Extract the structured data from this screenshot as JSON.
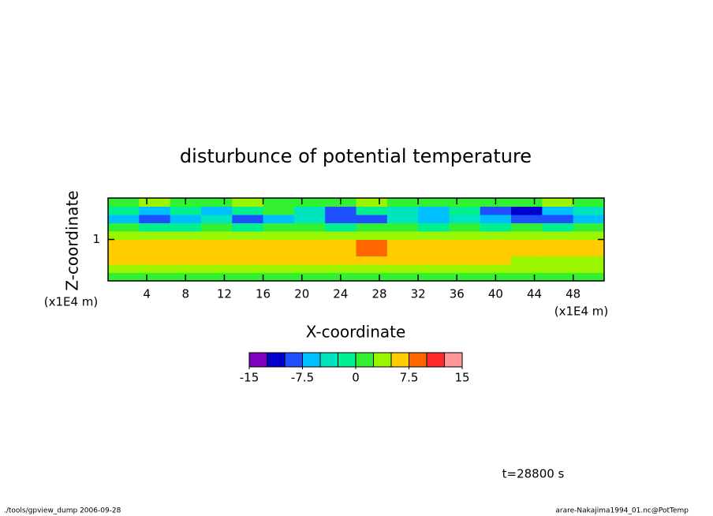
{
  "chart_data": {
    "type": "contour",
    "title": "disturbunce of potential temperature",
    "x_label": "X-coordinate",
    "y_label": "Z-coordinate",
    "x_unit": "(x1E4 m)",
    "y_unit": "(x1E4 m)",
    "time_label": "t=28800 s",
    "footer_left": "./tools/gpview_dump  2006-09-28",
    "footer_right": "arare-Nakajima1994_01.nc@PotTemp",
    "xlim": [
      0,
      51.2
    ],
    "ylim": [
      0,
      2
    ],
    "xticks": [
      4,
      8,
      12,
      16,
      20,
      24,
      28,
      32,
      36,
      40,
      44,
      48
    ],
    "yticks": [
      1
    ],
    "x": [
      1.6,
      4.8,
      8,
      11.2,
      14.4,
      17.6,
      20.8,
      24,
      27.2,
      30.4,
      33.6,
      36.8,
      40,
      43.2,
      46.4,
      49.6
    ],
    "y": [
      0.1,
      0.3,
      0.5,
      0.7,
      0.9,
      1.1,
      1.3,
      1.5,
      1.7,
      1.9
    ],
    "z": [
      [
        1,
        1,
        1,
        1,
        1,
        1,
        1,
        1,
        1.5,
        1,
        1,
        1,
        1,
        1,
        1,
        1
      ],
      [
        4,
        4,
        3.5,
        4,
        4,
        4,
        4,
        4,
        3,
        4,
        4,
        4,
        4,
        3.5,
        3.5,
        4
      ],
      [
        6,
        6,
        6,
        6,
        6,
        6,
        6,
        6,
        6.5,
        6,
        6,
        6,
        6,
        4,
        4,
        4
      ],
      [
        6,
        6,
        6,
        6,
        6,
        6,
        6,
        6,
        8.5,
        6,
        6,
        6,
        6,
        6,
        6,
        6
      ],
      [
        6,
        6,
        6,
        6,
        6,
        6,
        6,
        6,
        8,
        6,
        6,
        6,
        6,
        6,
        6,
        6
      ],
      [
        3,
        3,
        4,
        3,
        3,
        3,
        3,
        3,
        3,
        3,
        3,
        3,
        3,
        3,
        3,
        3
      ],
      [
        1,
        -1,
        -1,
        1,
        -1,
        1,
        1,
        -1,
        1,
        1,
        -1,
        1,
        -1,
        1,
        -1,
        1
      ],
      [
        -6,
        -9,
        -6,
        -3,
        -8,
        -6,
        -3,
        -9,
        -8,
        -4,
        -6,
        -3,
        -6,
        -8,
        -9,
        -6
      ],
      [
        -1,
        -6,
        -1,
        -6,
        -1,
        1,
        -3,
        -9,
        -1,
        -3,
        -6,
        -1,
        -9,
        -11,
        -6,
        -3
      ],
      [
        1,
        3,
        1,
        1,
        3,
        1,
        1,
        1,
        3,
        1,
        1,
        1,
        1,
        1,
        3,
        1
      ]
    ],
    "levels": [
      -15,
      -12.5,
      -10,
      -7.5,
      -5,
      -2.5,
      0,
      2.5,
      5,
      7.5,
      10,
      12.5,
      15
    ],
    "colors": [
      "#7f00bf",
      "#0000cd",
      "#1e50ff",
      "#00bfff",
      "#00e5c0",
      "#00f090",
      "#33f033",
      "#99f500",
      "#ffcc00",
      "#ff6600",
      "#ff2a2a",
      "#ff9999"
    ],
    "colorbar_ticks": [
      -15,
      -7.5,
      0,
      7.5,
      15
    ]
  }
}
